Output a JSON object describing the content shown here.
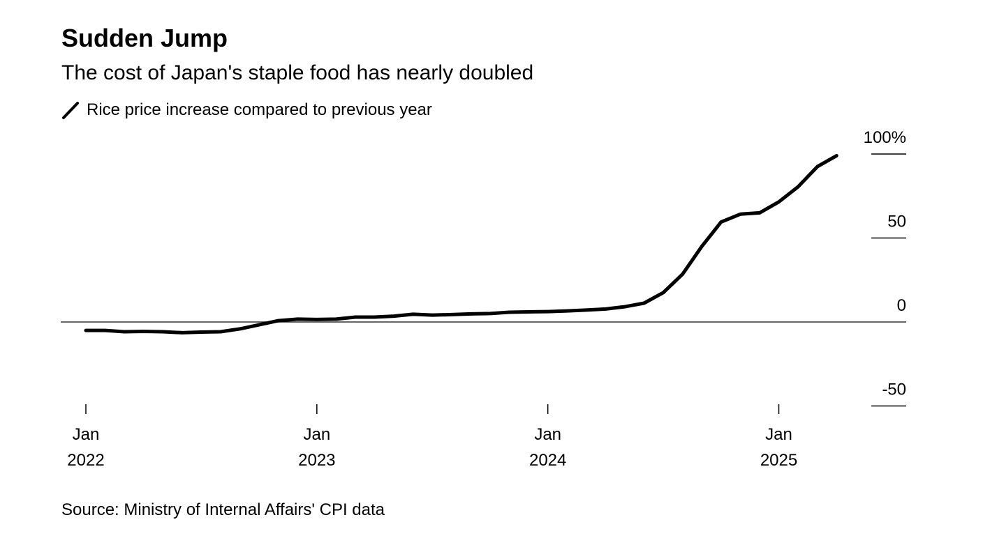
{
  "title": "Sudden Jump",
  "subtitle": "The cost of Japan's staple food has nearly doubled",
  "legend_label": "Rice price increase compared to previous year",
  "source": "Source: Ministry of Internal Affairs' CPI data",
  "chart_data": {
    "type": "line",
    "title": "Sudden Jump",
    "ylabel": "",
    "xlabel": "",
    "ylim": [
      -50,
      100
    ],
    "yticks": [
      {
        "v": 100,
        "label": "100%"
      },
      {
        "v": 50,
        "label": "50"
      },
      {
        "v": 0,
        "label": "0"
      },
      {
        "v": -50,
        "label": "-50"
      }
    ],
    "xticks": [
      {
        "i": 0,
        "label1": "Jan",
        "label2": "2022"
      },
      {
        "i": 12,
        "label1": "Jan",
        "label2": "2023"
      },
      {
        "i": 24,
        "label1": "Jan",
        "label2": "2024"
      },
      {
        "i": 36,
        "label1": "Jan",
        "label2": "2025"
      }
    ],
    "x_start": "2022-01",
    "series": [
      {
        "name": "Rice price increase compared to previous year",
        "color": "#000000",
        "values": [
          -5.0,
          -5.0,
          -5.8,
          -5.6,
          -5.8,
          -6.4,
          -6.0,
          -5.8,
          -4.1,
          -1.7,
          0.8,
          1.7,
          1.5,
          1.7,
          2.9,
          2.9,
          3.5,
          4.6,
          4.1,
          4.4,
          4.8,
          5.0,
          5.8,
          6.0,
          6.2,
          6.6,
          7.1,
          7.7,
          9.1,
          11.2,
          17.5,
          28.5,
          45.0,
          59.5,
          64.2,
          65.0,
          71.5,
          80.5,
          92.5,
          99.0
        ]
      }
    ]
  }
}
